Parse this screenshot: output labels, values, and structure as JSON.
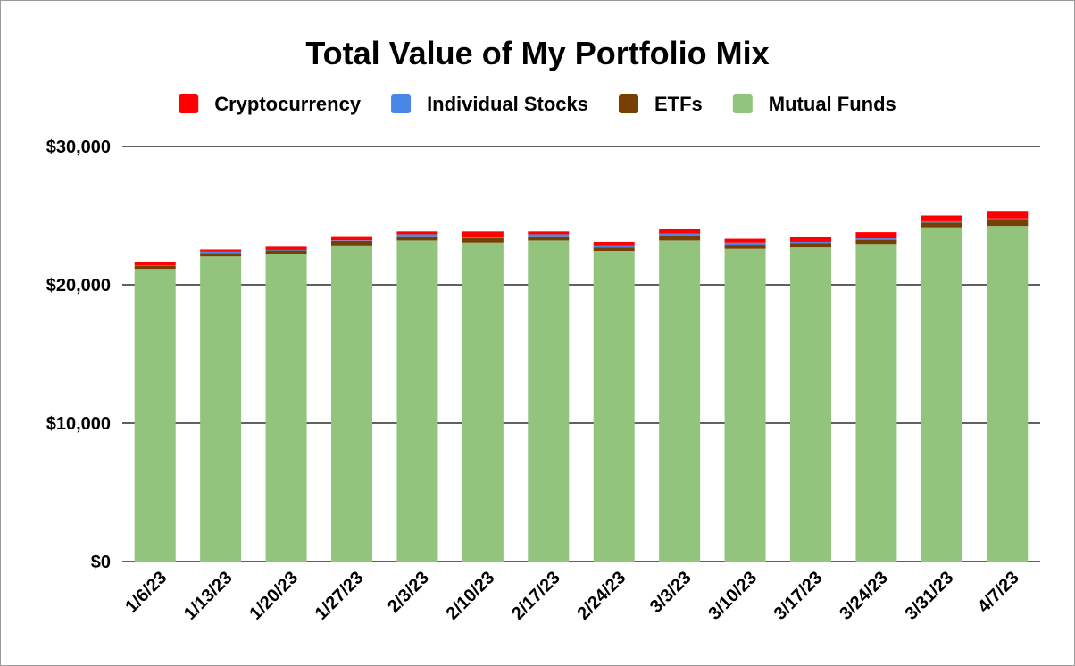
{
  "chart_data": {
    "type": "bar",
    "stacked": true,
    "title": "Total Value of My Portfolio Mix",
    "xlabel": "",
    "ylabel": "",
    "categories": [
      "1/6/23",
      "1/13/23",
      "1/20/23",
      "1/27/23",
      "2/3/23",
      "2/10/23",
      "2/17/23",
      "2/24/23",
      "3/3/23",
      "3/10/23",
      "3/17/23",
      "3/24/23",
      "3/31/23",
      "4/7/23"
    ],
    "series": [
      {
        "name": "Mutual Funds",
        "color": "#93c47d",
        "values": [
          21150,
          22050,
          22200,
          22850,
          23200,
          23050,
          23200,
          22450,
          23200,
          22600,
          22700,
          22950,
          24150,
          24250
        ]
      },
      {
        "name": "ETFs",
        "color": "#783f04",
        "values": [
          230,
          250,
          280,
          320,
          300,
          320,
          300,
          250,
          350,
          300,
          300,
          300,
          350,
          500
        ]
      },
      {
        "name": "Individual Stocks",
        "color": "#4a86e8",
        "values": [
          40,
          100,
          40,
          40,
          150,
          30,
          150,
          150,
          150,
          150,
          100,
          100,
          150,
          40
        ]
      },
      {
        "name": "Cryptocurrency",
        "color": "#ff0000",
        "values": [
          250,
          150,
          230,
          300,
          200,
          450,
          200,
          250,
          350,
          270,
          360,
          450,
          350,
          550
        ]
      }
    ],
    "legend_order": [
      "Cryptocurrency",
      "Individual Stocks",
      "ETFs",
      "Mutual Funds"
    ],
    "y_ticks": [
      {
        "value": 0,
        "label": "$0"
      },
      {
        "value": 10000,
        "label": "$10,000"
      },
      {
        "value": 20000,
        "label": "$20,000"
      },
      {
        "value": 30000,
        "label": "$30,000"
      }
    ],
    "ylim": [
      0,
      30000
    ],
    "grid": true,
    "legend_position": "top"
  }
}
